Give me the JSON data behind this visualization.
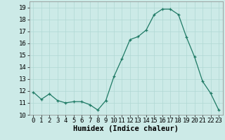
{
  "x": [
    0,
    1,
    2,
    3,
    4,
    5,
    6,
    7,
    8,
    9,
    10,
    11,
    12,
    13,
    14,
    15,
    16,
    17,
    18,
    19,
    20,
    21,
    22,
    23
  ],
  "y": [
    11.9,
    11.3,
    11.75,
    11.2,
    11.0,
    11.1,
    11.1,
    10.85,
    10.4,
    11.2,
    13.2,
    14.7,
    16.3,
    16.55,
    17.1,
    18.4,
    18.85,
    18.85,
    18.4,
    16.5,
    14.85,
    12.8,
    11.8,
    10.4
  ],
  "xlabel": "Humidex (Indice chaleur)",
  "ylim": [
    10,
    19.5
  ],
  "xlim": [
    -0.5,
    23.5
  ],
  "yticks": [
    10,
    11,
    12,
    13,
    14,
    15,
    16,
    17,
    18,
    19
  ],
  "xticks": [
    0,
    1,
    2,
    3,
    4,
    5,
    6,
    7,
    8,
    9,
    10,
    11,
    12,
    13,
    14,
    15,
    16,
    17,
    18,
    19,
    20,
    21,
    22,
    23
  ],
  "line_color": "#1f7a65",
  "bg_color": "#cceae7",
  "grid_color": "#b0d8d4",
  "tick_fontsize": 6.5,
  "xlabel_fontsize": 7.5
}
